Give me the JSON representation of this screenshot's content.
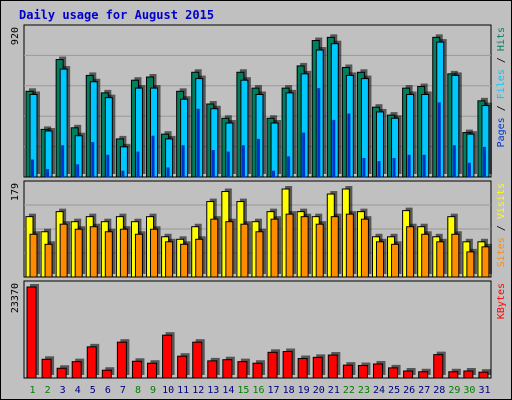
{
  "title": "Daily usage for August 2015",
  "colors": {
    "background": "#c0c0c0",
    "plot_bg": "#c0c0c0",
    "grid": "#999999",
    "hits": "#007f5f",
    "files": "#00c8ff",
    "pages": "#0033cc",
    "visits": "#ffff00",
    "sites": "#ff8c00",
    "kbytes": "#ff0000",
    "title": "#0000cc",
    "weekend_tick": "#008000",
    "weekday_tick": "#000080"
  },
  "chart_data": [
    {
      "type": "bar",
      "panel": "hits-files-pages",
      "ymax_label": "920",
      "ylim": [
        0,
        920
      ],
      "grid": true,
      "legend_text": [
        "Pages",
        "/",
        "Files",
        "/",
        "Hits"
      ],
      "categories": [
        "1",
        "2",
        "3",
        "4",
        "5",
        "6",
        "7",
        "8",
        "9",
        "10",
        "11",
        "12",
        "13",
        "14",
        "15",
        "16",
        "17",
        "18",
        "19",
        "20",
        "21",
        "22",
        "23",
        "24",
        "25",
        "26",
        "27",
        "28",
        "29",
        "30",
        "31"
      ],
      "weekend_days": [
        "1",
        "2",
        "8",
        "9",
        "15",
        "16",
        "22",
        "23",
        "29",
        "30"
      ],
      "series": [
        {
          "name": "Hits",
          "values": [
            540,
            300,
            740,
            310,
            640,
            530,
            240,
            610,
            630,
            270,
            540,
            660,
            460,
            370,
            660,
            560,
            370,
            560,
            700,
            860,
            880,
            690,
            660,
            440,
            390,
            560,
            570,
            880,
            650,
            280,
            480
          ]
        },
        {
          "name": "Files",
          "values": [
            520,
            290,
            680,
            260,
            600,
            500,
            190,
            560,
            560,
            240,
            490,
            620,
            430,
            340,
            610,
            520,
            340,
            530,
            650,
            800,
            840,
            640,
            620,
            410,
            370,
            520,
            520,
            850,
            640,
            270,
            450
          ]
        },
        {
          "name": "Pages",
          "values": [
            110,
            50,
            200,
            80,
            220,
            140,
            40,
            160,
            260,
            60,
            200,
            430,
            170,
            160,
            200,
            240,
            40,
            130,
            280,
            560,
            360,
            400,
            120,
            100,
            120,
            140,
            140,
            470,
            200,
            90,
            190
          ]
        }
      ]
    },
    {
      "type": "bar",
      "panel": "visits-sites",
      "ymax_label": "179",
      "ylim": [
        0,
        179
      ],
      "grid": true,
      "legend_text": [
        "Sites",
        "/",
        "Visits"
      ],
      "categories": [
        "1",
        "2",
        "3",
        "4",
        "5",
        "6",
        "7",
        "8",
        "9",
        "10",
        "11",
        "12",
        "13",
        "14",
        "15",
        "16",
        "17",
        "18",
        "19",
        "20",
        "21",
        "22",
        "23",
        "24",
        "25",
        "26",
        "27",
        "28",
        "29",
        "30",
        "31"
      ],
      "series": [
        {
          "name": "Visits",
          "values": [
            120,
            90,
            130,
            110,
            120,
            110,
            120,
            110,
            120,
            80,
            75,
            100,
            150,
            170,
            150,
            110,
            130,
            175,
            130,
            120,
            165,
            175,
            130,
            80,
            80,
            132,
            100,
            80,
            120,
            70,
            70
          ]
        },
        {
          "name": "Sites",
          "values": [
            85,
            65,
            105,
            95,
            100,
            90,
            95,
            85,
            95,
            70,
            65,
            75,
            115,
            110,
            105,
            90,
            115,
            125,
            120,
            105,
            120,
            125,
            115,
            70,
            65,
            100,
            85,
            70,
            85,
            50,
            60
          ]
        }
      ]
    },
    {
      "type": "bar",
      "panel": "kbytes",
      "ymax_label": "23370",
      "ylim": [
        0,
        23370
      ],
      "grid": false,
      "legend_text": [
        "KBytes"
      ],
      "categories": [
        "1",
        "2",
        "3",
        "4",
        "5",
        "6",
        "7",
        "8",
        "9",
        "10",
        "11",
        "12",
        "13",
        "14",
        "15",
        "16",
        "17",
        "18",
        "19",
        "20",
        "21",
        "22",
        "23",
        "24",
        "25",
        "26",
        "27",
        "28",
        "29",
        "30",
        "31"
      ],
      "series": [
        {
          "name": "KBytes",
          "values": [
            23370,
            4800,
            2500,
            4200,
            8000,
            2000,
            9200,
            4300,
            3800,
            11000,
            5600,
            9200,
            4400,
            4700,
            4200,
            3800,
            6600,
            6800,
            5000,
            5300,
            5900,
            3300,
            3200,
            3600,
            2600,
            1800,
            1600,
            6000,
            1600,
            1800,
            1500
          ]
        }
      ]
    }
  ]
}
